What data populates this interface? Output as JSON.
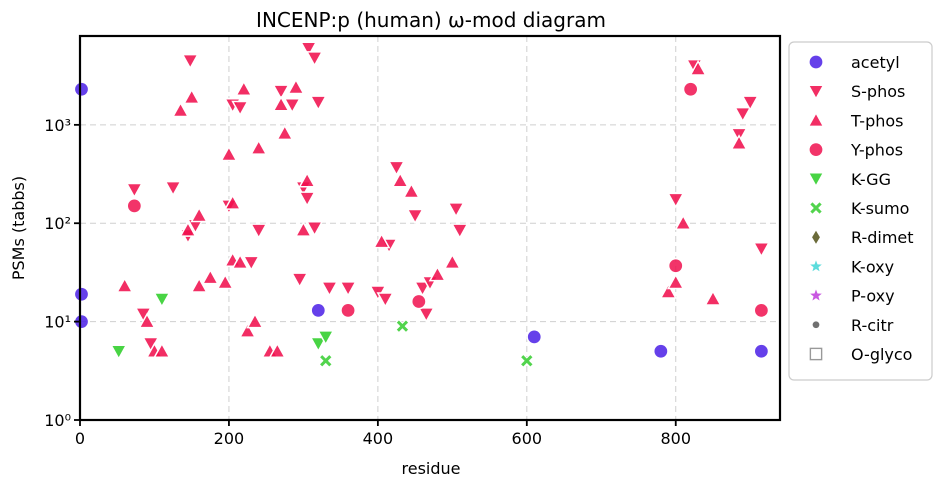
{
  "chart_data": {
    "type": "scatter",
    "title": "INCENP:p (human) ω-mod diagram",
    "xlabel": "residue",
    "ylabel": "PSMs (tabbs)",
    "xlim": [
      0,
      940
    ],
    "ylim": [
      1,
      8000
    ],
    "yscale": "log",
    "grid": true,
    "legend_position": "outside-right",
    "x_ticks": [
      "0",
      "200",
      "400",
      "600",
      "800"
    ],
    "x_tick_values": [
      0,
      200,
      400,
      600,
      800
    ],
    "y_ticks": [
      "10⁰",
      "10¹",
      "10²",
      "10³"
    ],
    "y_tick_values": [
      1,
      10,
      100,
      1000
    ],
    "series": [
      {
        "name": "acetyl",
        "marker": "circle",
        "color": "#4a1ee6",
        "points": [
          [
            2,
            2300
          ],
          [
            2,
            19
          ],
          [
            2,
            10
          ],
          [
            320,
            13
          ],
          [
            610,
            7
          ],
          [
            780,
            5
          ],
          [
            915,
            5
          ]
        ]
      },
      {
        "name": "S-phos",
        "marker": "triangle-down",
        "color": "#f0114f",
        "points": [
          [
            73,
            220
          ],
          [
            85,
            12
          ],
          [
            95,
            6
          ],
          [
            125,
            230
          ],
          [
            145,
            75
          ],
          [
            148,
            4500
          ],
          [
            155,
            95
          ],
          [
            200,
            150
          ],
          [
            205,
            1600
          ],
          [
            215,
            1500
          ],
          [
            230,
            40
          ],
          [
            240,
            85
          ],
          [
            270,
            2200
          ],
          [
            285,
            1600
          ],
          [
            295,
            27
          ],
          [
            300,
            230
          ],
          [
            305,
            180
          ],
          [
            307,
            6000
          ],
          [
            315,
            4800
          ],
          [
            315,
            90
          ],
          [
            320,
            1700
          ],
          [
            335,
            22
          ],
          [
            360,
            22
          ],
          [
            400,
            20
          ],
          [
            410,
            17
          ],
          [
            415,
            60
          ],
          [
            425,
            370
          ],
          [
            450,
            120
          ],
          [
            460,
            22
          ],
          [
            465,
            12
          ],
          [
            470,
            25
          ],
          [
            505,
            140
          ],
          [
            510,
            85
          ],
          [
            800,
            175
          ],
          [
            825,
            4000
          ],
          [
            885,
            800
          ],
          [
            890,
            1300
          ],
          [
            900,
            1700
          ],
          [
            915,
            55
          ]
        ]
      },
      {
        "name": "T-phos",
        "marker": "triangle-up",
        "color": "#f0114f",
        "points": [
          [
            60,
            23
          ],
          [
            90,
            10
          ],
          [
            100,
            5
          ],
          [
            110,
            5
          ],
          [
            135,
            1400
          ],
          [
            145,
            85
          ],
          [
            150,
            1900
          ],
          [
            160,
            120
          ],
          [
            160,
            23
          ],
          [
            175,
            28
          ],
          [
            195,
            25
          ],
          [
            200,
            500
          ],
          [
            205,
            42
          ],
          [
            205,
            160
          ],
          [
            215,
            40
          ],
          [
            220,
            2300
          ],
          [
            225,
            8
          ],
          [
            235,
            10
          ],
          [
            240,
            580
          ],
          [
            255,
            5
          ],
          [
            265,
            5
          ],
          [
            270,
            1600
          ],
          [
            275,
            820
          ],
          [
            290,
            2400
          ],
          [
            300,
            85
          ],
          [
            305,
            270
          ],
          [
            405,
            65
          ],
          [
            430,
            270
          ],
          [
            445,
            210
          ],
          [
            480,
            30
          ],
          [
            500,
            40
          ],
          [
            790,
            20
          ],
          [
            800,
            25
          ],
          [
            810,
            100
          ],
          [
            830,
            3700
          ],
          [
            850,
            17
          ],
          [
            885,
            650
          ]
        ]
      },
      {
        "name": "Y-phos",
        "marker": "circle",
        "color": "#f0114f",
        "points": [
          [
            73,
            150
          ],
          [
            360,
            13
          ],
          [
            455,
            16
          ],
          [
            800,
            37
          ],
          [
            820,
            2300
          ],
          [
            915,
            13
          ]
        ]
      },
      {
        "name": "K-GG",
        "marker": "triangle-down",
        "color": "#2fce2a",
        "points": [
          [
            52,
            5
          ],
          [
            110,
            17
          ],
          [
            320,
            6
          ],
          [
            330,
            7
          ]
        ]
      },
      {
        "name": "K-sumo",
        "marker": "x",
        "color": "#3fcf3a",
        "points": [
          [
            330,
            4
          ],
          [
            433,
            9
          ],
          [
            600,
            4
          ]
        ]
      },
      {
        "name": "R-dimet",
        "marker": "diamond",
        "color": "#6b6b3a",
        "points": []
      },
      {
        "name": "K-oxy",
        "marker": "star",
        "color": "#3fd6d6",
        "points": []
      },
      {
        "name": "P-oxy",
        "marker": "star",
        "color": "#c03bdc",
        "points": []
      },
      {
        "name": "R-citr",
        "marker": "dot",
        "color": "#707070",
        "points": []
      },
      {
        "name": "O-glyco",
        "marker": "square-open",
        "color": "#999999",
        "points": []
      }
    ]
  }
}
